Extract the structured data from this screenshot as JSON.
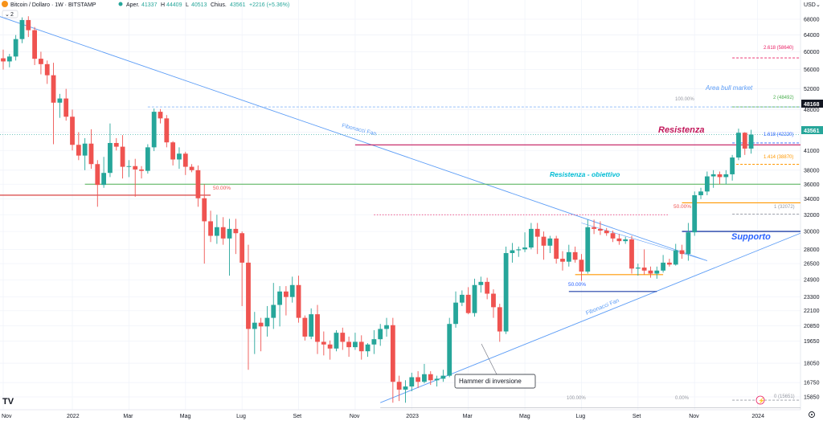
{
  "header": {
    "symbol": "Bitcoin / Dollaro · 1W · BITSTAMP",
    "open_label": "Aper.",
    "open": "41337",
    "high_label": "H",
    "high": "44409",
    "low_label": "L",
    "low": "40513",
    "close_label": "Chius.",
    "close": "43561",
    "change": "+2216 (+5.36%)",
    "currency": "USD",
    "collapse_count": "2"
  },
  "colors": {
    "up": "#26a69a",
    "down": "#ef5350",
    "trend": "#5b9cf6",
    "resistance": "#c2185b",
    "green": "#4caf50",
    "orange": "#ff9800",
    "support": "#1e3fa8",
    "cyan": "#00bcd4",
    "lightblue": "#2962ff",
    "pink": "#e91e63",
    "grid": "#f0f3fa"
  },
  "chart_data": {
    "type": "candlestick",
    "y_scale": "log",
    "ylim": [
      15000,
      70000
    ],
    "y_ticks": [
      15850,
      16750,
      18050,
      19650,
      20850,
      22100,
      23300,
      24900,
      26500,
      28000,
      30000,
      32000,
      34000,
      36000,
      38000,
      41000,
      44000,
      48000,
      52000,
      56000,
      60000,
      64000,
      68000
    ],
    "x_labels": [
      "Nov",
      "2022",
      "Mar",
      "Mag",
      "Lug",
      "Set",
      "Nov",
      "2023",
      "Mar",
      "Mag",
      "Lug",
      "Set",
      "Nov",
      "2024"
    ],
    "x_label_weeks": [
      0,
      11,
      20,
      29,
      38,
      47,
      56,
      65,
      74,
      83,
      92,
      101,
      110,
      120
    ],
    "candles": [
      [
        58500,
        60500,
        56000,
        57800
      ],
      [
        57800,
        59500,
        56500,
        58900
      ],
      [
        58900,
        64000,
        58000,
        63000
      ],
      [
        63000,
        68500,
        62000,
        67800
      ],
      [
        67800,
        68800,
        63500,
        65200
      ],
      [
        65200,
        66000,
        57000,
        58400
      ],
      [
        58400,
        60000,
        55000,
        57200
      ],
      [
        57200,
        58000,
        53000,
        54800
      ],
      [
        54800,
        57500,
        42000,
        49300
      ],
      [
        49300,
        51000,
        46500,
        50100
      ],
      [
        50100,
        52000,
        46000,
        46700
      ],
      [
        46700,
        48000,
        41000,
        41900
      ],
      [
        41900,
        44000,
        39500,
        40200
      ],
      [
        40200,
        43000,
        38000,
        42100
      ],
      [
        42100,
        44500,
        38200,
        38900
      ],
      [
        38900,
        39500,
        33000,
        35900
      ],
      [
        35900,
        40000,
        35500,
        37600
      ],
      [
        37600,
        45500,
        37000,
        42200
      ],
      [
        42200,
        43000,
        41000,
        41600
      ],
      [
        41600,
        43500,
        36800,
        38500
      ],
      [
        38500,
        39500,
        37000,
        38600
      ],
      [
        38600,
        39700,
        34300,
        38100
      ],
      [
        38100,
        38600,
        36800,
        37900
      ],
      [
        37900,
        42000,
        37500,
        41500
      ],
      [
        41500,
        48200,
        40900,
        47600
      ],
      [
        47600,
        48100,
        45500,
        46400
      ],
      [
        46400,
        47000,
        41500,
        42300
      ],
      [
        42300,
        42500,
        38700,
        39600
      ],
      [
        39600,
        41500,
        38200,
        40500
      ],
      [
        40500,
        40800,
        37300,
        38500
      ],
      [
        38500,
        38900,
        37700,
        38000
      ],
      [
        38000,
        38700,
        33000,
        34100
      ],
      [
        34100,
        36000,
        26500,
        31200
      ],
      [
        31200,
        32500,
        28800,
        29500
      ],
      [
        29500,
        32000,
        28600,
        30500
      ],
      [
        30500,
        31700,
        28500,
        29200
      ],
      [
        29200,
        31500,
        25300,
        30300
      ],
      [
        30300,
        31500,
        27500,
        29800
      ],
      [
        29800,
        30000,
        22500,
        26600
      ],
      [
        26600,
        28500,
        17600,
        20600
      ],
      [
        20600,
        22000,
        18700,
        21100
      ],
      [
        21100,
        21500,
        18900,
        20800
      ],
      [
        20800,
        22500,
        20000,
        21500
      ],
      [
        21500,
        24600,
        20600,
        22600
      ],
      [
        22600,
        24300,
        20800,
        23800
      ],
      [
        23800,
        24300,
        21700,
        23300
      ],
      [
        23300,
        25200,
        22800,
        24400
      ],
      [
        24400,
        25300,
        21100,
        21500
      ],
      [
        21500,
        21700,
        19700,
        20000
      ],
      [
        20000,
        22300,
        19800,
        21800
      ],
      [
        21800,
        22600,
        18700,
        19600
      ],
      [
        19600,
        20400,
        18600,
        19400
      ],
      [
        19400,
        19700,
        18300,
        19100
      ],
      [
        19100,
        20500,
        18900,
        20300
      ],
      [
        20300,
        20700,
        19000,
        19600
      ],
      [
        19600,
        20000,
        18500,
        19200
      ],
      [
        19200,
        20300,
        19000,
        19600
      ],
      [
        19600,
        20100,
        18300,
        18900
      ],
      [
        18900,
        19500,
        18500,
        19400
      ],
      [
        19400,
        20500,
        18700,
        19800
      ],
      [
        19800,
        21000,
        19300,
        20600
      ],
      [
        20600,
        21500,
        20000,
        20900
      ],
      [
        20900,
        21500,
        15500,
        16800
      ],
      [
        16800,
        17200,
        15600,
        16300
      ],
      [
        16300,
        16900,
        15500,
        16500
      ],
      [
        16500,
        17400,
        16200,
        17100
      ],
      [
        17100,
        17500,
        16400,
        16800
      ],
      [
        16800,
        18000,
        16700,
        17300
      ],
      [
        17300,
        17500,
        16600,
        16900
      ],
      [
        16900,
        17200,
        16500,
        17000
      ],
      [
        17000,
        17600,
        16800,
        17200
      ],
      [
        17200,
        21500,
        17100,
        21000
      ],
      [
        21000,
        23800,
        20700,
        22800
      ],
      [
        22800,
        23900,
        22500,
        23500
      ],
      [
        23500,
        24200,
        21800,
        21900
      ],
      [
        21900,
        25000,
        21600,
        24400
      ],
      [
        24400,
        25200,
        23700,
        24700
      ],
      [
        24700,
        25100,
        23100,
        23600
      ],
      [
        23600,
        24000,
        21500,
        22400
      ],
      [
        22400,
        22700,
        19600,
        20400
      ],
      [
        20400,
        28300,
        20200,
        27600
      ],
      [
        27600,
        28700,
        26600,
        27900
      ],
      [
        27900,
        28300,
        27200,
        28000
      ],
      [
        28000,
        29900,
        27700,
        28200
      ],
      [
        28200,
        31000,
        28000,
        30300
      ],
      [
        30300,
        31000,
        27500,
        29400
      ],
      [
        29400,
        30000,
        26900,
        28400
      ],
      [
        28400,
        29500,
        27600,
        29200
      ],
      [
        29200,
        29500,
        26500,
        27000
      ],
      [
        27000,
        27800,
        25800,
        26700
      ],
      [
        26700,
        28500,
        26200,
        27700
      ],
      [
        27700,
        28300,
        26600,
        26900
      ],
      [
        26900,
        27500,
        24800,
        25700
      ],
      [
        25700,
        31400,
        25500,
        30500
      ],
      [
        30500,
        31400,
        29700,
        30300
      ],
      [
        30300,
        31200,
        29600,
        30100
      ],
      [
        30100,
        30400,
        29500,
        29800
      ],
      [
        29800,
        30100,
        28800,
        29200
      ],
      [
        29200,
        29700,
        28500,
        28900
      ],
      [
        28900,
        29400,
        28600,
        29100
      ],
      [
        29100,
        29500,
        25500,
        26000
      ],
      [
        26000,
        26500,
        25300,
        26100
      ],
      [
        26100,
        28000,
        25400,
        25800
      ],
      [
        25800,
        26200,
        25100,
        25500
      ],
      [
        25500,
        26200,
        25000,
        25800
      ],
      [
        25800,
        27400,
        25600,
        26600
      ],
      [
        26600,
        27000,
        26200,
        26400
      ],
      [
        26400,
        28600,
        26300,
        27900
      ],
      [
        27900,
        28500,
        27000,
        27500
      ],
      [
        27500,
        31000,
        26800,
        29900
      ],
      [
        29900,
        35000,
        29500,
        34500
      ],
      [
        34500,
        35500,
        34000,
        35000
      ],
      [
        35000,
        37800,
        34500,
        37100
      ],
      [
        37100,
        38000,
        35500,
        37400
      ],
      [
        37400,
        37800,
        36000,
        37000
      ],
      [
        37000,
        38000,
        36000,
        37400
      ],
      [
        37400,
        40300,
        36500,
        39900
      ],
      [
        39900,
        44600,
        39500,
        43900
      ],
      [
        43900,
        44000,
        40300,
        41300
      ],
      [
        41300,
        44400,
        40500,
        43600
      ]
    ]
  },
  "annotations": {
    "fib_fan_label_1": "Fibonacci Fan",
    "fib_fan_label_2": "Fibonacci Fan",
    "left_50": "50.00%",
    "mid_50": "50.00%",
    "low_50": "50.00%",
    "resistenza": "Resistenza",
    "resistenza_obiettivo": "Resistenza - obiettivo",
    "supporto": "Supporto",
    "area_bull": "Area bull market",
    "hammer": "Hammer di inversione",
    "fib_100_top": "100.00%",
    "fib_2_618": "2.618 (58640)",
    "fib_2": "2 (48492)",
    "fib_1_618": "1.618 (42220)",
    "fib_1_414": "1.414 (38870)",
    "fib_1": "1 (32072)",
    "fib_0": "0 (15651)",
    "fib_100_bottom": "100.00%",
    "fib_0_pct": "0.00%"
  },
  "price_labels": {
    "current_48168": "48168",
    "current_43561": "43561"
  }
}
